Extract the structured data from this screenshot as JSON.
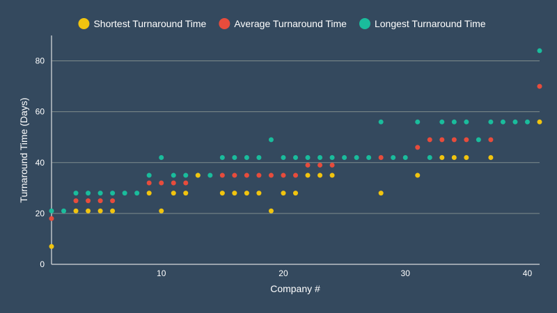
{
  "chart_data": {
    "type": "scatter",
    "xlabel": "Company #",
    "ylabel": "Turnaround Time (Days)",
    "xlim": [
      1,
      41
    ],
    "ylim": [
      0,
      90
    ],
    "x_ticks": [
      10,
      20,
      30,
      40
    ],
    "y_ticks": [
      0,
      20,
      40,
      60,
      80
    ],
    "grid": "horizontal",
    "legend_position": "top",
    "background": "#34495e",
    "series": [
      {
        "name": "Shortest Turnaround Time",
        "color": "#f1c40f",
        "points": [
          [
            1,
            7
          ],
          [
            3,
            21
          ],
          [
            4,
            21
          ],
          [
            5,
            21
          ],
          [
            6,
            21
          ],
          [
            9,
            28
          ],
          [
            10,
            21
          ],
          [
            11,
            28
          ],
          [
            12,
            28
          ],
          [
            13,
            35
          ],
          [
            15,
            28
          ],
          [
            16,
            28
          ],
          [
            17,
            28
          ],
          [
            18,
            28
          ],
          [
            19,
            21
          ],
          [
            20,
            28
          ],
          [
            21,
            28
          ],
          [
            22,
            35
          ],
          [
            23,
            35
          ],
          [
            24,
            35
          ],
          [
            28,
            28
          ],
          [
            31,
            35
          ],
          [
            33,
            42
          ],
          [
            34,
            42
          ],
          [
            35,
            42
          ],
          [
            37,
            42
          ],
          [
            41,
            56
          ]
        ]
      },
      {
        "name": "Average Turnaround Time",
        "color": "#e74c3c",
        "points": [
          [
            1,
            18
          ],
          [
            3,
            25
          ],
          [
            4,
            25
          ],
          [
            5,
            25
          ],
          [
            6,
            25
          ],
          [
            9,
            32
          ],
          [
            10,
            32
          ],
          [
            11,
            32
          ],
          [
            12,
            32
          ],
          [
            15,
            35
          ],
          [
            16,
            35
          ],
          [
            17,
            35
          ],
          [
            18,
            35
          ],
          [
            19,
            35
          ],
          [
            20,
            35
          ],
          [
            21,
            35
          ],
          [
            22,
            39
          ],
          [
            23,
            39
          ],
          [
            24,
            39
          ],
          [
            28,
            42
          ],
          [
            31,
            46
          ],
          [
            32,
            49
          ],
          [
            33,
            49
          ],
          [
            34,
            49
          ],
          [
            35,
            49
          ],
          [
            37,
            49
          ],
          [
            41,
            70
          ]
        ]
      },
      {
        "name": "Longest Turnaround Time",
        "color": "#1abc9c",
        "points": [
          [
            1,
            21
          ],
          [
            2,
            21
          ],
          [
            3,
            28
          ],
          [
            4,
            28
          ],
          [
            5,
            28
          ],
          [
            6,
            28
          ],
          [
            7,
            28
          ],
          [
            8,
            28
          ],
          [
            9,
            35
          ],
          [
            10,
            42
          ],
          [
            11,
            35
          ],
          [
            12,
            35
          ],
          [
            13,
            35
          ],
          [
            14,
            35
          ],
          [
            15,
            42
          ],
          [
            16,
            42
          ],
          [
            17,
            42
          ],
          [
            18,
            42
          ],
          [
            19,
            49
          ],
          [
            20,
            42
          ],
          [
            21,
            42
          ],
          [
            22,
            42
          ],
          [
            23,
            42
          ],
          [
            24,
            42
          ],
          [
            25,
            42
          ],
          [
            26,
            42
          ],
          [
            27,
            42
          ],
          [
            28,
            56
          ],
          [
            29,
            42
          ],
          [
            30,
            42
          ],
          [
            31,
            56
          ],
          [
            32,
            42
          ],
          [
            33,
            56
          ],
          [
            34,
            56
          ],
          [
            35,
            56
          ],
          [
            36,
            49
          ],
          [
            37,
            56
          ],
          [
            38,
            56
          ],
          [
            39,
            56
          ],
          [
            40,
            56
          ],
          [
            41,
            84
          ]
        ]
      }
    ]
  }
}
